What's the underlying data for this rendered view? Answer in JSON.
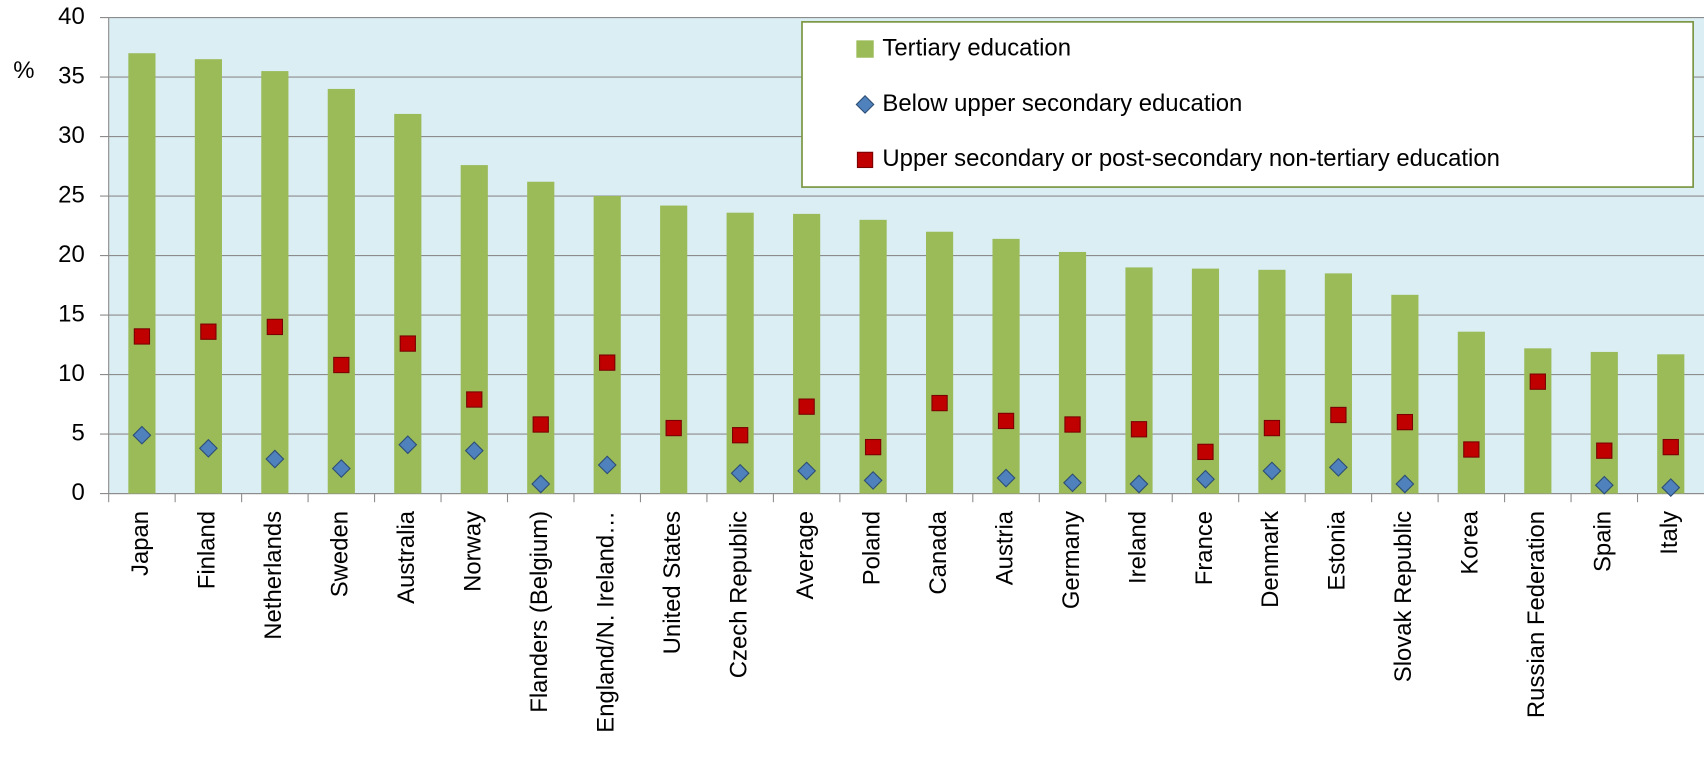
{
  "chart_data": {
    "type": "bar",
    "y_label": "%",
    "categories": [
      "Japan",
      "Finland",
      "Netherlands",
      "Sweden",
      "Australia",
      "Norway",
      "Flanders (Belgium)",
      "England/N. Ireland…",
      "United States",
      "Czech Republic",
      "Average",
      "Poland",
      "Canada",
      "Austria",
      "Germany",
      "Ireland",
      "France",
      "Denmark",
      "Estonia",
      "Slovak Republic",
      "Korea",
      "Russian Federation",
      "Spain",
      "Italy"
    ],
    "series": [
      {
        "name": "Tertiary education",
        "color": "#9bbb59",
        "marker": "bar",
        "values": [
          37,
          36.5,
          35.5,
          34,
          31.9,
          27.6,
          26.2,
          25,
          24.2,
          23.6,
          23.5,
          23,
          22,
          21.4,
          20.3,
          19,
          18.9,
          18.8,
          18.5,
          16.7,
          13.6,
          12.2,
          11.9,
          11.7
        ]
      },
      {
        "name": "Below upper secondary education",
        "color": "#4f81bd",
        "marker": "diamond",
        "values": [
          4.9,
          3.8,
          2.9,
          2.1,
          4.1,
          3.6,
          0.8,
          2.4,
          null,
          1.7,
          1.9,
          1.1,
          null,
          1.3,
          0.9,
          0.8,
          1.2,
          1.9,
          2.2,
          0.8,
          null,
          null,
          0.7,
          0.5
        ]
      },
      {
        "name": "Upper secondary or post-secondary non-tertiary education",
        "color": "#c00000",
        "marker": "square",
        "values": [
          13.2,
          13.6,
          14,
          10.8,
          12.6,
          7.9,
          5.8,
          11,
          5.5,
          4.9,
          7.3,
          3.9,
          7.6,
          6.1,
          5.8,
          5.4,
          3.5,
          5.5,
          6.6,
          6,
          3.7,
          9.4,
          3.6,
          3.9
        ]
      }
    ],
    "ylim": [
      0,
      40
    ],
    "yticks": [
      0,
      5,
      10,
      15,
      20,
      25,
      30,
      35,
      40
    ],
    "grid": true,
    "legend": "top-right"
  }
}
